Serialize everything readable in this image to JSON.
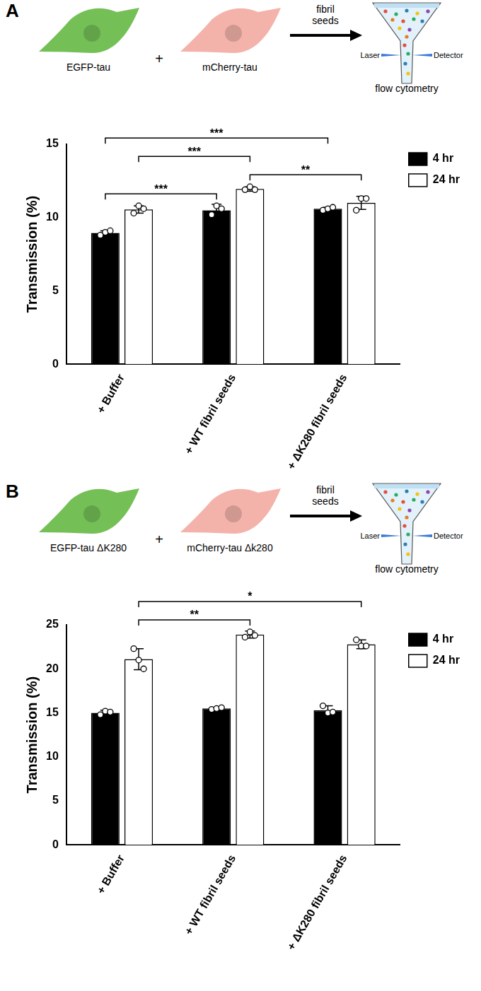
{
  "chart_data": [
    {
      "panel": "A",
      "type": "bar",
      "schematic": {
        "cells": [
          {
            "label": "EGFP-tau",
            "color": "#74c056"
          },
          {
            "label": "mCherry-tau",
            "color": "#f4b3aa"
          }
        ],
        "join": "+",
        "arrow_label": "fibril seeds",
        "laser": "Laser",
        "detector": "Detector",
        "caption": "flow cytometry"
      },
      "y_label": "Transmission (%)",
      "categories": [
        "+ Buffer",
        "+ WT fibril seeds",
        "+ ΔK280 fibril seeds"
      ],
      "series": [
        {
          "name": "4 hr",
          "color": "#000000",
          "values": [
            8.95,
            10.5,
            10.6
          ],
          "errors": [
            0.15,
            0.4,
            0.1
          ],
          "points": [
            [
              8.8,
              9.0,
              9.1
            ],
            [
              10.2,
              10.8,
              10.6
            ],
            [
              10.5,
              10.6,
              10.7
            ]
          ]
        },
        {
          "name": "24 hr",
          "color": "#ffffff",
          "values": [
            10.55,
            11.95,
            11.0
          ],
          "errors": [
            0.25,
            0.15,
            0.45
          ],
          "points": [
            [
              10.3,
              10.8,
              10.6
            ],
            [
              11.9,
              12.1,
              11.9
            ],
            [
              10.5,
              11.3,
              11.3
            ]
          ]
        }
      ],
      "ylim": [
        0,
        15
      ],
      "yticks": [
        0,
        5,
        10,
        15
      ],
      "grid": false,
      "legend": "right",
      "significance": [
        {
          "from": [
            "+ Buffer",
            "4 hr"
          ],
          "to": [
            "+ WT fibril seeds",
            "4 hr"
          ],
          "label": "***"
        },
        {
          "from": [
            "+ Buffer",
            "4 hr"
          ],
          "to": [
            "+ ΔK280 fibril seeds",
            "4 hr"
          ],
          "label": "***"
        },
        {
          "from": [
            "+ Buffer",
            "24 hr"
          ],
          "to": [
            "+ WT fibril seeds",
            "24 hr"
          ],
          "label": "***"
        },
        {
          "from": [
            "+ WT fibril seeds",
            "24 hr"
          ],
          "to": [
            "+ ΔK280 fibril seeds",
            "24 hr"
          ],
          "label": "**"
        }
      ]
    },
    {
      "panel": "B",
      "type": "bar",
      "schematic": {
        "cells": [
          {
            "label": "EGFP-tau ΔK280",
            "color": "#74c056"
          },
          {
            "label": "mCherry-tau Δk280",
            "color": "#f4b3aa"
          }
        ],
        "join": "+",
        "arrow_label": "fibril seeds",
        "laser": "Laser",
        "detector": "Detector",
        "caption": "flow cytometry"
      },
      "y_label": "Transmission (%)",
      "categories": [
        "+ Buffer",
        "+ WT fibril seeds",
        "+ ΔK280 fibril seeds"
      ],
      "series": [
        {
          "name": "4 hr",
          "color": "#000000",
          "values": [
            15.0,
            15.5,
            15.3
          ],
          "errors": [
            0.3,
            0.1,
            0.5
          ],
          "points": [
            [
              14.8,
              15.2,
              15.1
            ],
            [
              15.4,
              15.5,
              15.6
            ],
            [
              15.8,
              15.0,
              15.1
            ]
          ]
        },
        {
          "name": "24 hr",
          "color": "#ffffff",
          "values": [
            21.1,
            23.9,
            22.8
          ],
          "errors": [
            1.2,
            0.4,
            0.5
          ],
          "points": [
            [
              22.3,
              21.0,
              20.0
            ],
            [
              23.6,
              24.2,
              23.8
            ],
            [
              23.3,
              22.6,
              22.6
            ]
          ]
        }
      ],
      "ylim": [
        0,
        25
      ],
      "yticks": [
        0,
        5,
        10,
        15,
        20,
        25
      ],
      "grid": false,
      "legend": "right",
      "significance": [
        {
          "from": [
            "+ Buffer",
            "24 hr"
          ],
          "to": [
            "+ WT fibril seeds",
            "24 hr"
          ],
          "label": "**"
        },
        {
          "from": [
            "+ Buffer",
            "24 hr"
          ],
          "to": [
            "+ ΔK280 fibril seeds",
            "24 hr"
          ],
          "label": "*"
        }
      ]
    }
  ]
}
